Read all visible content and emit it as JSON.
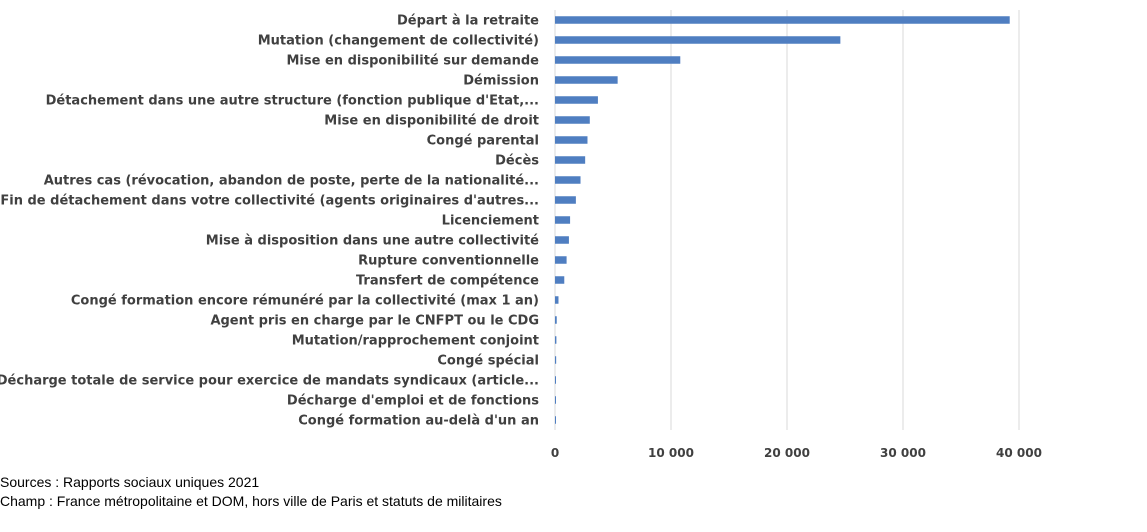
{
  "chart_data": {
    "type": "bar",
    "orientation": "horizontal",
    "title": "",
    "xlabel": "",
    "ylabel": "",
    "xlim": [
      0,
      40000
    ],
    "x_ticks": [
      0,
      10000,
      20000,
      30000,
      40000
    ],
    "x_tick_labels": [
      "0",
      "10 000",
      "20 000",
      "30 000",
      "40 000"
    ],
    "grid": "vertical",
    "bar_color": "#4f7ec1",
    "categories": [
      "Départ à la retraite",
      "Mutation (changement de collectivité)",
      "Mise en disponibilité sur demande",
      "Démission",
      "Détachement dans une autre structure (fonction publique d'Etat,...",
      "Mise en disponibilité de droit",
      "Congé parental",
      "Décès",
      "Autres cas (révocation, abandon de poste, perte de la nationalité...",
      "Fin de détachement dans votre collectivité (agents originaires d'autres...",
      "Licenciement",
      "Mise à disposition dans une autre collectivité",
      "Rupture conventionnelle",
      "Transfert de compétence",
      "Congé formation encore rémunéré par la collectivité (max 1 an)",
      "Agent pris en charge par le CNFPT ou le CDG",
      "Mutation/rapprochement conjoint",
      "Congé spécial",
      "Décharge totale de service pour exercice de mandats syndicaux (article...",
      "Décharge d'emploi et de fonctions",
      "Congé formation au-delà d'un an"
    ],
    "values": [
      39200,
      24600,
      10800,
      5400,
      3700,
      3000,
      2800,
      2600,
      2200,
      1800,
      1300,
      1200,
      1000,
      800,
      300,
      150,
      120,
      100,
      80,
      40,
      20
    ]
  },
  "footnotes": {
    "source": "Sources : Rapports sociaux uniques 2021",
    "scope": "Champ : France métropolitaine et DOM, hors ville de Paris et statuts de militaires"
  }
}
